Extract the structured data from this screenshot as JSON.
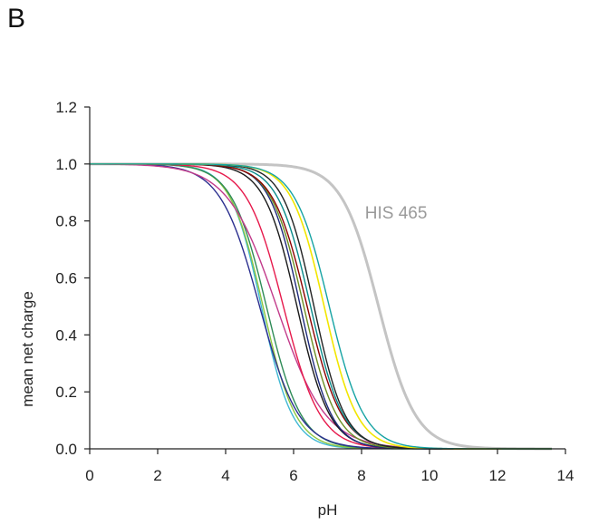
{
  "panel_label": "B",
  "chart_data": {
    "type": "line",
    "xlabel": "pH",
    "ylabel": "mean net charge",
    "xlim": [
      0,
      14
    ],
    "ylim": [
      0,
      1.2
    ],
    "x_ticks": [
      "0",
      "2",
      "4",
      "6",
      "8",
      "10",
      "12",
      "14"
    ],
    "y_ticks": [
      "0.0",
      "0.2",
      "0.4",
      "0.6",
      "0.8",
      "1.0",
      "1.2"
    ],
    "annotation": {
      "text": "HIS 465",
      "x": 8.1,
      "y": 0.83
    },
    "curves_note": "titration curves: mean net charge = 1/(1+10^(n*(pH-pKa)))",
    "series": [
      {
        "pka": 8.5,
        "n": 0.8,
        "color": "#c4c4c4",
        "width": 3.0,
        "label": "HIS 465"
      },
      {
        "pka": 5.05,
        "n": 0.95,
        "color": "#3fb8d4",
        "width": 1.4
      },
      {
        "pka": 5.1,
        "n": 0.9,
        "color": "#8cc63f",
        "width": 1.4
      },
      {
        "pka": 5.2,
        "n": 0.85,
        "color": "#2e8b57",
        "width": 1.4
      },
      {
        "pka": 5.0,
        "n": 0.75,
        "color": "#2b2f8f",
        "width": 1.4
      },
      {
        "pka": 5.5,
        "n": 0.6,
        "color": "#c23a8a",
        "width": 1.4
      },
      {
        "pka": 5.7,
        "n": 0.8,
        "color": "#e6194b",
        "width": 1.4
      },
      {
        "pka": 6.1,
        "n": 0.9,
        "color": "#1a1a1a",
        "width": 1.4
      },
      {
        "pka": 6.2,
        "n": 0.95,
        "color": "#1e2a7a",
        "width": 1.4
      },
      {
        "pka": 6.3,
        "n": 0.9,
        "color": "#6b8e23",
        "width": 1.4
      },
      {
        "pka": 6.4,
        "n": 0.85,
        "color": "#8b0000",
        "width": 1.4
      },
      {
        "pka": 6.5,
        "n": 0.9,
        "color": "#0a8a8a",
        "width": 1.4
      },
      {
        "pka": 6.6,
        "n": 0.95,
        "color": "#222222",
        "width": 1.4
      },
      {
        "pka": 6.9,
        "n": 0.9,
        "color": "#f2e600",
        "width": 1.6
      },
      {
        "pka": 7.05,
        "n": 0.85,
        "color": "#15a3a3",
        "width": 1.4
      }
    ]
  }
}
